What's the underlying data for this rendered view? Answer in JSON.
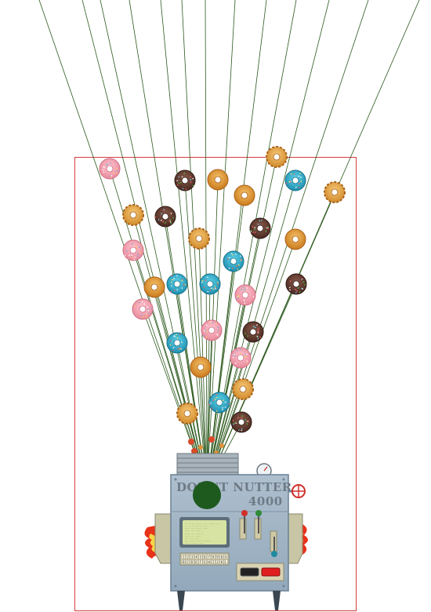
{
  "machine": {
    "title_line1": "DONUT NUTTER",
    "title_line2": "4000",
    "screen_lines": [
      "-- ---- ---- --- ---- --",
      "- -- ----- ----- -",
      "  --- -- ----- ---",
      "  --- --- --- -",
      "  ---- -- --- -",
      "  --- -- ----",
      "  -- --- ---",
      "-- ---- ---- -----",
      "--- ----- ---"
    ],
    "keypad_keys": [
      "1",
      "2",
      "3",
      "4",
      "5",
      "6",
      "7",
      "8",
      "9",
      "0",
      "A",
      "B",
      "C",
      "D",
      "E",
      "F",
      "G",
      "H",
      "I",
      "J",
      "K",
      "L"
    ]
  },
  "colors": {
    "border": "#d23c3c",
    "string": "#2d5a1e",
    "machine_body": "#9fb5c6",
    "screen": "#d6e3a2",
    "launcher": "#1e5a1e"
  },
  "donuts": [
    {
      "id": "d1",
      "kind": "pink"
    },
    {
      "id": "d2",
      "kind": "chocolate"
    },
    {
      "id": "d3",
      "kind": "glazed"
    },
    {
      "id": "d4",
      "kind": "cruller"
    },
    {
      "id": "d5",
      "kind": "glazed"
    },
    {
      "id": "d6",
      "kind": "blue"
    },
    {
      "id": "d7",
      "kind": "cruller"
    },
    {
      "id": "d8",
      "kind": "cruller"
    },
    {
      "id": "d9",
      "kind": "chocolate"
    },
    {
      "id": "d10",
      "kind": "cruller"
    },
    {
      "id": "d11",
      "kind": "chocolate"
    },
    {
      "id": "d12",
      "kind": "glazed"
    },
    {
      "id": "d13",
      "kind": "pink"
    },
    {
      "id": "d14",
      "kind": "blue"
    },
    {
      "id": "d15",
      "kind": "glazed"
    },
    {
      "id": "d16",
      "kind": "blue"
    },
    {
      "id": "d17",
      "kind": "blue"
    },
    {
      "id": "d18",
      "kind": "pink"
    },
    {
      "id": "d19",
      "kind": "chocolate"
    },
    {
      "id": "d20",
      "kind": "pink"
    },
    {
      "id": "d21",
      "kind": "blue"
    },
    {
      "id": "d22",
      "kind": "pink"
    },
    {
      "id": "d23",
      "kind": "chocolate"
    },
    {
      "id": "d24",
      "kind": "pink"
    },
    {
      "id": "d25",
      "kind": "glazed"
    },
    {
      "id": "d26",
      "kind": "cruller"
    },
    {
      "id": "d27",
      "kind": "cruller"
    },
    {
      "id": "d28",
      "kind": "blue"
    },
    {
      "id": "d29",
      "kind": "chocolate"
    }
  ]
}
